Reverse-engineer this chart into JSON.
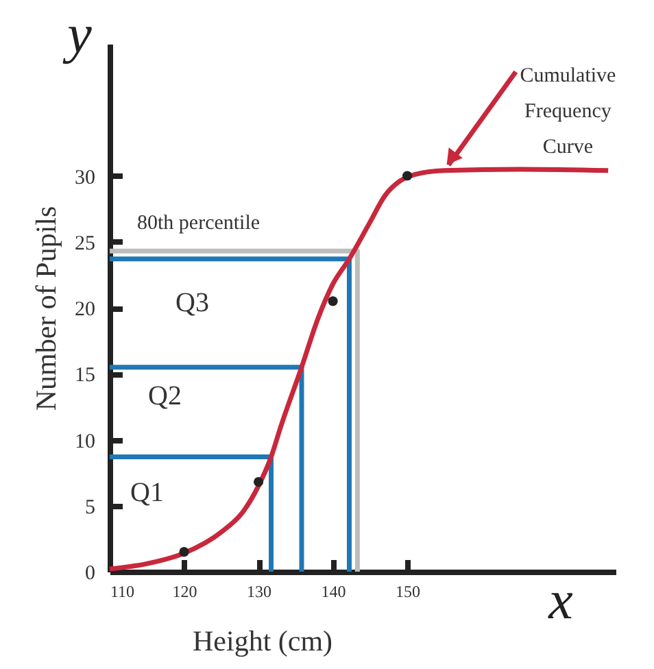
{
  "chart_data": {
    "type": "line",
    "xlabel": "Height (cm)",
    "ylabel": "Number of Pupils",
    "xlim": [
      110,
      178
    ],
    "ylim": [
      0,
      40
    ],
    "xticks": [
      110,
      120,
      130,
      140,
      150
    ],
    "yticks": [
      0,
      5,
      10,
      15,
      20,
      25,
      30
    ],
    "grid": false,
    "series": [
      {
        "type": "line",
        "name": "80th percentile",
        "color": "#bdbdbd",
        "x": [
          110,
          143.3,
          143.3
        ],
        "values": [
          24.3,
          24.3,
          0
        ]
      },
      {
        "type": "line",
        "name": "Q1",
        "color": "#1f78b4",
        "x": [
          110,
          131.7,
          131.7
        ],
        "values": [
          8.7,
          8.7,
          0
        ]
      },
      {
        "type": "line",
        "name": "Q2",
        "color": "#1f78b4",
        "x": [
          110,
          135.8,
          135.8
        ],
        "values": [
          15.5,
          15.5,
          0
        ]
      },
      {
        "type": "line",
        "name": "Q3",
        "color": "#1f78b4",
        "x": [
          110,
          142.2,
          142.2
        ],
        "values": [
          23.7,
          23.7,
          0
        ]
      },
      {
        "type": "line",
        "name": "Cumulative Frequency Curve",
        "color": "#c8283c",
        "marker": "none",
        "x": [
          110,
          115,
          120,
          125,
          128,
          130,
          131.7,
          133,
          135.8,
          138,
          140,
          142.2,
          145,
          147,
          149,
          151,
          155,
          165,
          177
        ],
        "values": [
          0.2,
          0.6,
          1.4,
          3,
          4.6,
          6.5,
          8.7,
          11,
          15.5,
          19.2,
          21.8,
          23.7,
          26.5,
          28.5,
          29.6,
          30.1,
          30.4,
          30.5,
          30.4
        ]
      },
      {
        "type": "scatter",
        "color": "#222222",
        "marker": "circle",
        "x": [
          120,
          130,
          140,
          150
        ],
        "values": [
          1.5,
          6.8,
          20.5,
          30
        ]
      }
    ],
    "annotations": [
      "y",
      "x"
    ]
  }
}
